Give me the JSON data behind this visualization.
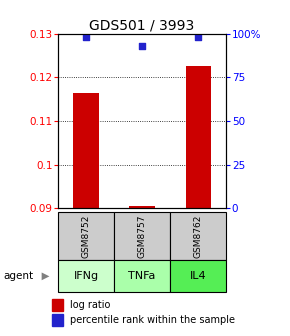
{
  "title": "GDS501 / 3993",
  "samples": [
    "GSM8752",
    "GSM8757",
    "GSM8762"
  ],
  "agents": [
    "IFNg",
    "TNFa",
    "IL4"
  ],
  "log_ratios": [
    0.1165,
    0.0905,
    0.1225
  ],
  "percentile_ranks": [
    98,
    93,
    98
  ],
  "ylim_left": [
    0.09,
    0.13
  ],
  "ylim_right": [
    0,
    100
  ],
  "yticks_left": [
    0.09,
    0.1,
    0.11,
    0.12,
    0.13
  ],
  "yticks_right": [
    0,
    25,
    50,
    75,
    100
  ],
  "ytick_labels_left": [
    "0.09",
    "0.1",
    "0.11",
    "0.12",
    "0.13"
  ],
  "ytick_labels_right": [
    "0",
    "25",
    "50",
    "75",
    "100%"
  ],
  "bar_color": "#cc0000",
  "scatter_color": "#2222cc",
  "sample_bg_color": "#cccccc",
  "agent_colors": {
    "IFNg": "#ccffcc",
    "TNFa": "#aaffaa",
    "IL4": "#55ee55"
  },
  "title_fontsize": 10,
  "tick_fontsize": 7.5,
  "sample_fontsize": 6.5,
  "agent_fontsize": 8
}
